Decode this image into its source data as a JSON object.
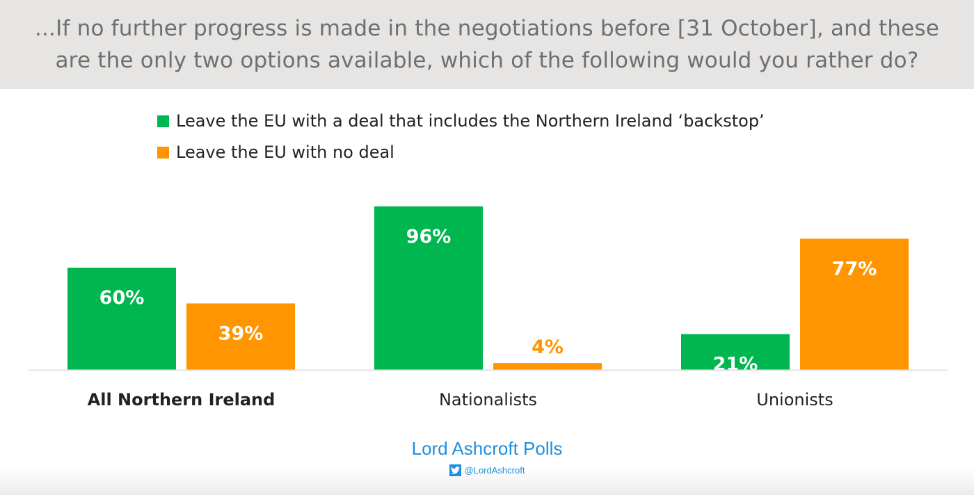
{
  "chart_data": {
    "type": "bar",
    "title": "...If no further progress is made in the negotiations before [31 October], and these are the only two options available, which of the following would you rather do?",
    "categories": [
      "All Northern Ireland",
      "Nationalists",
      "Unionists"
    ],
    "series": [
      {
        "name": "Leave the EU with a deal that includes the Northern Ireland ‘backstop’",
        "color": "#00b74f",
        "values": [
          60,
          96,
          21
        ]
      },
      {
        "name": "Leave the EU with no deal",
        "color": "#ff9500",
        "values": [
          39,
          4,
          77
        ]
      }
    ],
    "value_labels": [
      [
        "60%",
        "96%",
        "21%"
      ],
      [
        "39%",
        "4%",
        "77%"
      ]
    ],
    "ylim": [
      0,
      100
    ],
    "legend_placement": "top-left",
    "grid": false
  },
  "footer": {
    "brand": "Lord Ashcroft Polls",
    "handle": "@LordAshcroft",
    "icon": "twitter-icon"
  }
}
